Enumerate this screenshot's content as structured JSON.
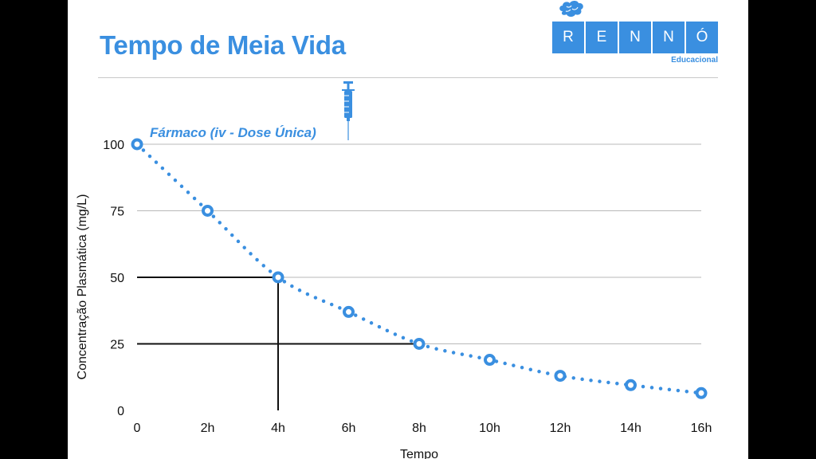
{
  "slide": {
    "title": "Tempo de Meia Vida",
    "accent_color": "#3a8fe0",
    "icons": [
      "brain-icon",
      "syringe-icon"
    ]
  },
  "logo": {
    "letters": [
      "R",
      "E",
      "N",
      "N",
      "Ó"
    ],
    "subtitle": "Educacional",
    "color": "#3a8fe0"
  },
  "chart_data": {
    "type": "scatter",
    "annotation": "Fármaco (iv - Dose Única)",
    "xlabel": "Tempo",
    "ylabel": "Concentração Plasmática (mg/L)",
    "categories": [
      "0",
      "2h",
      "4h",
      "6h",
      "8h",
      "10h",
      "12h",
      "14h",
      "16h"
    ],
    "x": [
      0,
      2,
      4,
      6,
      8,
      10,
      12,
      14,
      16
    ],
    "series": [
      {
        "values": [
          100,
          75,
          50,
          37,
          25,
          19,
          13,
          9.5,
          6.5
        ]
      }
    ],
    "yticks": [
      0,
      25,
      50,
      75,
      100
    ],
    "xlim": [
      0,
      16
    ],
    "ylim": [
      0,
      100
    ],
    "grid": true,
    "half_life_markers": [
      {
        "x": 4,
        "y": 50
      },
      {
        "x": 8,
        "y": 25
      }
    ],
    "marker_style": "hollow-circle",
    "line_style": "dotted",
    "color": "#3a8fe0"
  }
}
